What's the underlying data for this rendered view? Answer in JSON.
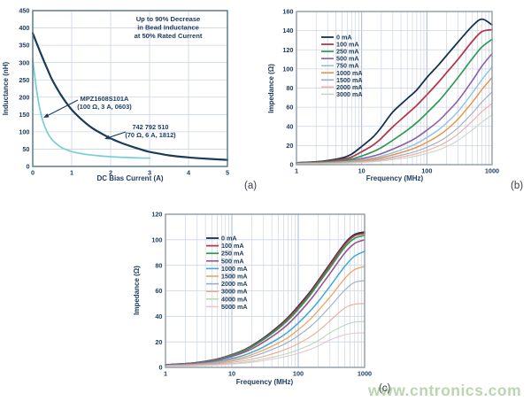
{
  "watermark": {
    "text": "www.cntronics.com",
    "color": "#b9d6ae"
  },
  "panel_labels": {
    "a": "(a)",
    "b": "(b)",
    "c": "(c)"
  },
  "theme": {
    "axis_text": "#1b3a5f",
    "frame_a": "#4f7187",
    "frame_bc": "#8e9aa7",
    "grid_minor": "#ccd5e4",
    "grid_major": "#aab8cb",
    "arrow": "#1b3a5f"
  },
  "chart_data": [
    {
      "id": "chart-a",
      "type": "line",
      "xscale": "linear",
      "title": "",
      "xlabel": "DC Bias Current (A)",
      "ylabel": "Inductance (nH)",
      "xlim": [
        0,
        5
      ],
      "ylim": [
        0,
        450
      ],
      "xticks": [
        0,
        1,
        2,
        3,
        4,
        5
      ],
      "yticks": [
        0,
        50,
        100,
        150,
        200,
        250,
        300,
        350,
        400,
        450
      ],
      "grid": true,
      "note_lines": [
        "Up to 90% Decrease",
        "in Bead Inductance",
        "at 50% Rated Current"
      ],
      "series": [
        {
          "name": "742 792 510 (70 Ω, 6 A, 1812)",
          "color": "#1a3c59",
          "x": [
            0,
            0.1,
            0.2,
            0.3,
            0.4,
            0.5,
            0.75,
            1,
            1.25,
            1.5,
            1.75,
            2,
            2.25,
            2.5,
            2.75,
            3,
            3.25,
            3.5,
            4,
            4.5,
            5
          ],
          "y": [
            385,
            356,
            328,
            301,
            275,
            250,
            202,
            164,
            136,
            113,
            96,
            81,
            69,
            59,
            50,
            42,
            37,
            32,
            26,
            22,
            19
          ]
        },
        {
          "name": "MPZ1608S101A (100 Ω, 3 A, 0603)",
          "color": "#74cfd4",
          "x": [
            0,
            0.05,
            0.1,
            0.15,
            0.2,
            0.25,
            0.3,
            0.4,
            0.5,
            0.6,
            0.75,
            1,
            1.25,
            1.5,
            1.75,
            2,
            2.25,
            2.5,
            2.75,
            3
          ],
          "y": [
            308,
            262,
            220,
            185,
            157,
            135,
            118,
            93,
            77,
            66,
            54,
            43,
            37,
            33,
            30,
            28,
            26.5,
            25.5,
            24.5,
            24
          ]
        }
      ],
      "annotations": [
        {
          "lines": [
            "MPZ1608S101A",
            "(100 Ω, 3 A, 0603)"
          ]
        },
        {
          "lines": [
            "742 792 510",
            "(70 Ω, 6 A, 1812)"
          ]
        }
      ]
    },
    {
      "id": "chart-b",
      "type": "line",
      "xscale": "log",
      "title": "",
      "xlabel": "Frequency (MHz)",
      "ylabel": "Impedance (Ω)",
      "xlim": [
        1,
        1000
      ],
      "ylim": [
        0,
        160
      ],
      "xticks": [
        1,
        10,
        100,
        1000
      ],
      "yticks": [
        0,
        20,
        40,
        60,
        80,
        100,
        120,
        140,
        160
      ],
      "grid": true,
      "legend": true,
      "x": [
        1,
        2,
        3,
        5,
        7,
        10,
        15,
        20,
        30,
        50,
        70,
        100,
        150,
        200,
        300,
        500,
        700,
        1000
      ],
      "series": [
        {
          "name": "0 mA",
          "color": "#16324e",
          "y": [
            2,
            3,
            4.3,
            7,
            11,
            19,
            29,
            39,
            55,
            69,
            78,
            91,
            104,
            114,
            128,
            145,
            152,
            146
          ]
        },
        {
          "name": "100 mA",
          "color": "#b43a4b",
          "y": [
            1.9,
            2.6,
            3.5,
            5.6,
            8,
            13.5,
            20.5,
            27.5,
            39.5,
            53,
            62,
            73,
            86,
            96,
            110,
            129,
            139,
            141
          ]
        },
        {
          "name": "250 mA",
          "color": "#2e9b55",
          "y": [
            1.7,
            2.2,
            2.9,
            4.3,
            5.9,
            9,
            13.6,
            17.8,
            25.5,
            36,
            44,
            54,
            66,
            76,
            91,
            111,
            123,
            131
          ]
        },
        {
          "name": "500 mA",
          "color": "#8d5fa5",
          "y": [
            1.4,
            1.8,
            2.3,
            3.3,
            4.4,
            6.3,
            9,
            11.5,
            16.2,
            23,
            28.5,
            36,
            45.5,
            54,
            67,
            88,
            103,
            116
          ]
        },
        {
          "name": "750 mA",
          "color": "#8fc3e3",
          "y": [
            1.2,
            1.6,
            2,
            2.8,
            3.6,
            5,
            7,
            8.9,
            12.4,
            17.8,
            22.2,
            28.3,
            36.3,
            43.5,
            55.5,
            75,
            89,
            102
          ]
        },
        {
          "name": "1000 mA",
          "color": "#ee8f3e",
          "y": [
            1.1,
            1.4,
            1.8,
            2.4,
            3.1,
            4.2,
            5.8,
            7.3,
            10.2,
            14.6,
            18.2,
            23.3,
            30.2,
            36.5,
            47.5,
            65.5,
            78.5,
            91
          ]
        },
        {
          "name": "1500 mA",
          "color": "#9dabc4",
          "y": [
            1,
            1.2,
            1.5,
            2,
            2.5,
            3.4,
            4.6,
            5.8,
            8,
            11.4,
            14.2,
            18.2,
            23.8,
            29,
            38.5,
            54,
            65.5,
            76
          ]
        },
        {
          "name": "2000 mA",
          "color": "#f2aba6",
          "y": [
            0.9,
            1.1,
            1.3,
            1.7,
            2.1,
            2.8,
            3.8,
            4.7,
            6.5,
            9.2,
            11.5,
            14.8,
            19.4,
            23.8,
            32,
            45.5,
            55.5,
            64
          ]
        },
        {
          "name": "3000 mA",
          "color": "#c7d6c0",
          "y": [
            0.8,
            1,
            1.2,
            1.5,
            1.8,
            2.3,
            3.1,
            3.8,
            5.2,
            7.3,
            9.1,
            11.7,
            15.3,
            18.8,
            25.3,
            36.3,
            44.5,
            52
          ]
        }
      ]
    },
    {
      "id": "chart-c",
      "type": "line",
      "xscale": "log",
      "title": "",
      "xlabel": "Frequency (MHz)",
      "ylabel": "Impedance (Ω)",
      "xlim": [
        1,
        1000
      ],
      "ylim": [
        0,
        120
      ],
      "xticks": [
        1,
        10,
        100,
        1000
      ],
      "yticks": [
        0,
        20,
        40,
        60,
        80,
        100,
        120
      ],
      "grid": true,
      "legend": true,
      "x": [
        1,
        2,
        3,
        5,
        7,
        10,
        15,
        20,
        30,
        50,
        70,
        100,
        150,
        200,
        300,
        500,
        700,
        1000
      ],
      "series": [
        {
          "name": "0 mA",
          "color": "#16324e",
          "y": [
            2,
            2.9,
            3.8,
            5.6,
            7.4,
            10,
            13.5,
            17,
            23,
            32,
            39,
            48,
            59,
            68,
            81,
            97,
            104,
            106
          ]
        },
        {
          "name": "100 mA",
          "color": "#b43a4b",
          "y": [
            2,
            2.85,
            3.7,
            5.5,
            7.2,
            9.8,
            13.2,
            16.6,
            22.5,
            31.3,
            38.2,
            47,
            58,
            67,
            80,
            96,
            103,
            105
          ]
        },
        {
          "name": "250 mA",
          "color": "#2e9b55",
          "y": [
            1.9,
            2.75,
            3.6,
            5.3,
            7,
            9.5,
            12.8,
            16,
            21.8,
            30.3,
            37,
            45.5,
            56.5,
            65.5,
            78,
            94,
            101,
            103.5
          ]
        },
        {
          "name": "500 mA",
          "color": "#9b5390",
          "y": [
            1.8,
            2.5,
            3.3,
            4.8,
            6.3,
            8.6,
            11.6,
            14.5,
            19.8,
            27.6,
            33.8,
            42,
            52.5,
            61,
            73.5,
            89.5,
            97,
            100
          ]
        },
        {
          "name": "1000 mA",
          "color": "#41a8da",
          "y": [
            1.5,
            2.1,
            2.7,
            3.9,
            5.1,
            7,
            9.4,
            11.8,
            16,
            22.5,
            27.7,
            34.7,
            44,
            51.5,
            63.5,
            79,
            87,
            91
          ]
        },
        {
          "name": "1500 mA",
          "color": "#eea55e",
          "y": [
            1.4,
            1.9,
            2.4,
            3.4,
            4.4,
            6,
            8,
            10,
            13.6,
            19,
            23.4,
            29.5,
            37.5,
            44.5,
            55,
            69.5,
            76.5,
            79
          ]
        },
        {
          "name": "2000 mA",
          "color": "#9dabc4",
          "y": [
            1.2,
            1.6,
            2.1,
            2.9,
            3.7,
            5,
            6.7,
            8.4,
            11.4,
            16,
            19.7,
            24.8,
            31.7,
            37.7,
            47.5,
            60.5,
            66.5,
            68
          ]
        },
        {
          "name": "3000 mA",
          "color": "#ecab8d",
          "y": [
            1,
            1.3,
            1.7,
            2.3,
            2.9,
            3.9,
            5.2,
            6.4,
            8.6,
            12,
            14.8,
            18.6,
            23.8,
            28.5,
            36.5,
            46.5,
            49.5,
            50
          ]
        },
        {
          "name": "4000 mA",
          "color": "#bdd8b5",
          "y": [
            0.9,
            1.1,
            1.4,
            1.9,
            2.3,
            3,
            4,
            4.9,
            6.5,
            9,
            11,
            13.8,
            17.6,
            21,
            27,
            33,
            35.5,
            36
          ]
        },
        {
          "name": "5000 mA",
          "color": "#e6c6d4",
          "y": [
            0.8,
            1,
            1.2,
            1.6,
            2,
            2.5,
            3.3,
            4,
            5.3,
            7.3,
            8.9,
            11,
            14,
            16.8,
            21.5,
            25.5,
            26.8,
            27
          ]
        }
      ]
    }
  ]
}
